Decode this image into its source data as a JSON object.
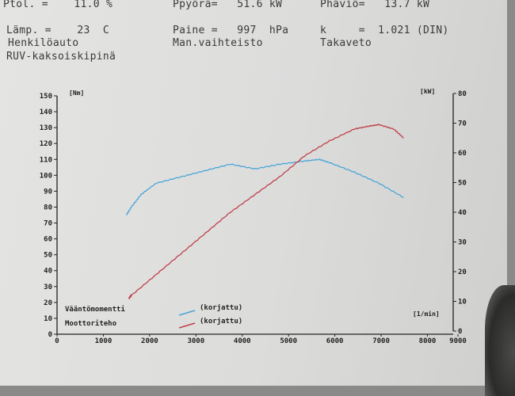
{
  "header": {
    "row1": {
      "ptol": "Ptol. =    11.0 %",
      "ppyora": "Ppyörä=   51.6 kW",
      "phavio": "Phäviö=   13.7 kW"
    },
    "row2": {
      "lamp": "Lämp. =    23  C",
      "paine": "Paine =   997  hPa",
      "k": "k     =  1.021 (DIN)"
    },
    "row3": {
      "henkilo": "Henkilöauto",
      "vaihteisto": "Man.vaihteisto",
      "veto": "Takaveto"
    },
    "row4": {
      "ruv": "RUV-kaksoiskipinä"
    }
  },
  "chart_data": {
    "type": "line",
    "xlabel": "[1/min]",
    "ylabel_left": "[Nm]",
    "ylabel_right": "[kW]",
    "xlim": [
      0,
      8000
    ],
    "ylim_left": [
      0,
      150
    ],
    "ylim_right": [
      0,
      80
    ],
    "x_ticks": [
      "0",
      "1000",
      "2000",
      "3000",
      "4000",
      "5000",
      "6000",
      "7000",
      "8000",
      "9000"
    ],
    "left_ticks": [
      "0",
      "10",
      "20",
      "30",
      "40",
      "50",
      "60",
      "70",
      "80",
      "90",
      "100",
      "110",
      "120",
      "130",
      "140",
      "150"
    ],
    "right_ticks": [
      "0",
      "10",
      "20",
      "30",
      "40",
      "50",
      "60",
      "70",
      "80"
    ],
    "series": [
      {
        "name": "Vääntömomentti",
        "tag": "(korjattu)",
        "axis": "left",
        "color": "#4aa6d8",
        "x": [
          1400,
          1500,
          1700,
          2000,
          2500,
          3000,
          3500,
          4000,
          4500,
          5000,
          5300,
          5500,
          6000,
          6500,
          7000
        ],
        "y": [
          75,
          80,
          88,
          95,
          99,
          103,
          107,
          104,
          107,
          109,
          110,
          108,
          102,
          95,
          86
        ]
      },
      {
        "name": "Moottoriteho",
        "tag": "(korjattu)",
        "axis": "right",
        "color": "#c0404c",
        "x": [
          1450,
          1500,
          2000,
          2500,
          3000,
          3500,
          4000,
          4500,
          5000,
          5500,
          6000,
          6300,
          6500,
          6800,
          7000
        ],
        "y": [
          11,
          12,
          19,
          26,
          33,
          40,
          46,
          52,
          59,
          64,
          68,
          69,
          69.5,
          68,
          65
        ]
      }
    ]
  }
}
